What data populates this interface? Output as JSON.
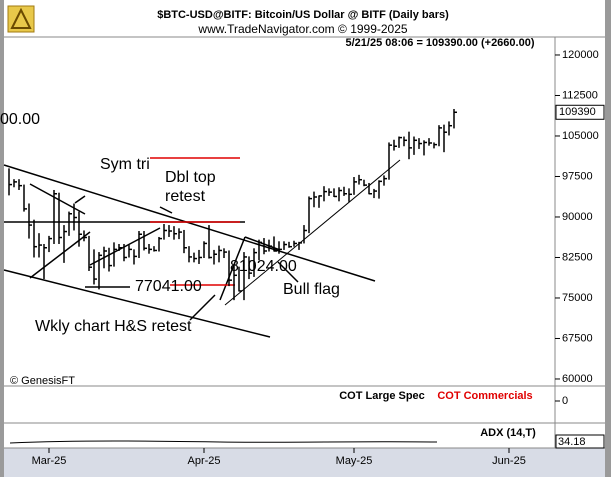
{
  "header": {
    "title": "$BTC-USD@BITF:  Bitcoin/US Dollar @ BITF  (Daily bars)",
    "source": "www.TradeNavigator.com © 1999-2025",
    "quote": "5/21/25 08:06 = 109390.00 (+2660.00)"
  },
  "chart_data": [
    {
      "type": "ohlc",
      "color": "#000000",
      "categories": [
        null,
        null,
        null,
        null,
        null,
        null,
        null,
        null,
        "Mar-25",
        null,
        null,
        null,
        null,
        null,
        null,
        null,
        null,
        null,
        null,
        null,
        null,
        null,
        null,
        null,
        null,
        null,
        null,
        null,
        null,
        null,
        null,
        null,
        null,
        null,
        null,
        null,
        null,
        null,
        null,
        "Apr-25",
        null,
        null,
        null,
        null,
        null,
        null,
        null,
        null,
        null,
        null,
        null,
        null,
        null,
        null,
        null,
        null,
        null,
        null,
        null,
        null,
        null,
        null,
        null,
        null,
        null,
        null,
        null,
        null,
        null,
        "May-25",
        null,
        null,
        null,
        null,
        null,
        null,
        null,
        null,
        null,
        null,
        null,
        null,
        null,
        null,
        null,
        null,
        null,
        null,
        null,
        null,
        null,
        null,
        null,
        null,
        null,
        null,
        null,
        null,
        null,
        null,
        "Jun-25"
      ],
      "high": [
        99000,
        97000,
        97000,
        96000,
        92500,
        89500,
        87000,
        85000,
        86500,
        95000,
        94500,
        88500,
        91000,
        92500,
        91000,
        87500,
        86500,
        84000,
        83500,
        84500,
        84300,
        85300,
        85000,
        85000,
        84800,
        84000,
        87400,
        87400,
        85000,
        84600,
        86300,
        88700,
        88500,
        88300,
        87900,
        87600,
        84600,
        83400,
        83900,
        85500,
        88500,
        83900,
        84700,
        84200,
        83800,
        81200,
        80800,
        83500,
        82700,
        84200,
        85800,
        86100,
        85800,
        86400,
        85500,
        85500,
        85400,
        85600,
        85400,
        88500,
        93800,
        94700,
        94000,
        95700,
        95300,
        95300,
        95500,
        95600,
        95300,
        97400,
        97800,
        96900,
        96300,
        95200,
        96800,
        97700,
        103800,
        104300,
        104900,
        104900,
        105800,
        104900,
        104600,
        104200,
        104600,
        103800,
        107000,
        107100,
        107700,
        110000,
        null,
        null,
        null,
        null,
        null,
        null,
        null,
        null,
        null,
        null,
        null
      ],
      "low": [
        94000,
        95500,
        95000,
        91000,
        86000,
        82500,
        82500,
        78500,
        83500,
        85000,
        85000,
        81500,
        86500,
        87500,
        84500,
        85500,
        80000,
        77500,
        76600,
        80500,
        79900,
        80800,
        83700,
        81800,
        82500,
        81200,
        82400,
        83800,
        83200,
        83600,
        83600,
        85800,
        86300,
        85800,
        85900,
        83300,
        81600,
        81600,
        81300,
        82400,
        82300,
        81200,
        81600,
        82400,
        77200,
        74600,
        76200,
        74600,
        78500,
        78900,
        82000,
        83100,
        83600,
        83600,
        83200,
        83900,
        84300,
        84500,
        83900,
        85100,
        87000,
        91800,
        91700,
        92900,
        93900,
        93700,
        92900,
        93900,
        92800,
        94100,
        96000,
        95700,
        94200,
        93500,
        93400,
        95800,
        96900,
        102300,
        102800,
        103100,
        100700,
        101500,
        102600,
        101400,
        103200,
        102700,
        103100,
        102000,
        105100,
        106400,
        null,
        null,
        null,
        null,
        null,
        null,
        null,
        null,
        null,
        null,
        null
      ],
      "close": [
        96000,
        96500,
        95800,
        91500,
        88500,
        84500,
        84800,
        84300,
        86000,
        94300,
        86200,
        87300,
        90600,
        89900,
        86800,
        86200,
        80700,
        78500,
        82900,
        83700,
        81000,
        84000,
        84300,
        82500,
        84000,
        82700,
        86800,
        84200,
        84000,
        83800,
        86000,
        87500,
        87400,
        86900,
        87200,
        84300,
        82600,
        82300,
        82500,
        85100,
        82500,
        83100,
        83800,
        83500,
        78300,
        79200,
        76300,
        82600,
        79600,
        83400,
        85300,
        83700,
        84600,
        83700,
        84000,
        84900,
        84500,
        85100,
        85200,
        87500,
        93400,
        93700,
        93900,
        94700,
        94600,
        93800,
        94900,
        94300,
        94200,
        96500,
        96900,
        95900,
        94300,
        94800,
        96600,
        97100,
        103300,
        103100,
        104700,
        104200,
        102800,
        104200,
        103600,
        103800,
        103700,
        103400,
        106500,
        105700,
        106900,
        109390,
        null,
        null,
        null,
        null,
        null,
        null,
        null,
        null,
        null,
        null,
        null
      ],
      "ylim": [
        58700,
        123700
      ],
      "yticks": [
        60000,
        67500,
        75000,
        82500,
        90000,
        97500,
        105000,
        112500,
        120000
      ],
      "annotations": [
        "00.00",
        "Sym tri",
        "Dbl top",
        "retest",
        "77041.00",
        "81024.00",
        "Bull flag",
        "Wkly chart H&S retest"
      ],
      "credit": "© GenesisFT"
    },
    {
      "type": "cot",
      "series": [
        {
          "name": "COT Large Spec",
          "color": "#000000"
        },
        {
          "name": "COT Commercials",
          "color": "#e00000"
        }
      ],
      "yticks": [
        0
      ]
    },
    {
      "type": "adx",
      "title": "ADX (14,T)",
      "last_value": 34.18
    }
  ]
}
